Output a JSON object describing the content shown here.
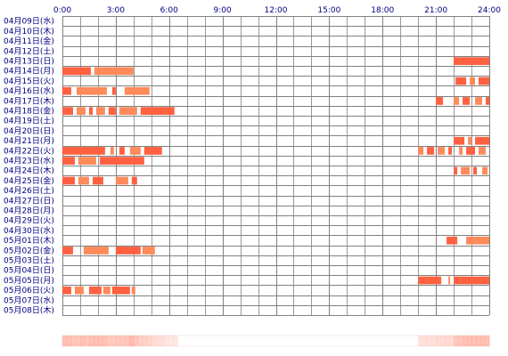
{
  "chart_data": {
    "type": "timeline",
    "x_ticks": [
      "0:00",
      "3:00",
      "6:00",
      "9:00",
      "12:00",
      "15:00",
      "18:00",
      "21:00",
      "24:00"
    ],
    "xlim": [
      0,
      24
    ],
    "grid": true,
    "bar_color": "#ff6040",
    "bar_color_light": "#ff8a5a",
    "grid_color": "#808080",
    "label_color": "#000080",
    "summary_strip_colors": [
      "#ffffff",
      "#fde0da",
      "#fbc8b8"
    ],
    "rows": [
      {
        "label": "04月09日(水)",
        "segments": []
      },
      {
        "label": "04月10日(木)",
        "segments": []
      },
      {
        "label": "04月11日(金)",
        "segments": []
      },
      {
        "label": "04月12日(土)",
        "segments": []
      },
      {
        "label": "04月13日(日)",
        "segments": [
          [
            22.0,
            24.0
          ]
        ]
      },
      {
        "label": "04月14日(月)",
        "segments": [
          [
            0.0,
            1.6
          ],
          [
            1.8,
            4.0
          ]
        ]
      },
      {
        "label": "04月15日(火)",
        "segments": [
          [
            22.1,
            22.7
          ],
          [
            22.9,
            23.2
          ],
          [
            23.4,
            24.0
          ]
        ]
      },
      {
        "label": "04月16日(水)",
        "segments": [
          [
            0.0,
            0.5
          ],
          [
            0.8,
            2.5
          ],
          [
            2.8,
            3.0
          ],
          [
            3.5,
            4.9
          ]
        ]
      },
      {
        "label": "04月17日(木)",
        "segments": [
          [
            21.0,
            21.4
          ],
          [
            22.0,
            22.3
          ],
          [
            22.5,
            22.9
          ],
          [
            23.2,
            23.6
          ],
          [
            23.8,
            24.0
          ]
        ]
      },
      {
        "label": "04月18日(金)",
        "segments": [
          [
            0.0,
            0.6
          ],
          [
            0.8,
            1.3
          ],
          [
            1.5,
            1.7
          ],
          [
            1.9,
            2.4
          ],
          [
            2.6,
            3.0
          ],
          [
            3.2,
            4.2
          ],
          [
            4.4,
            6.3
          ]
        ]
      },
      {
        "label": "04月19日(土)",
        "segments": []
      },
      {
        "label": "04月20日(日)",
        "segments": []
      },
      {
        "label": "04月21日(月)",
        "segments": [
          [
            22.0,
            22.6
          ],
          [
            22.8,
            23.0
          ],
          [
            23.2,
            24.0
          ]
        ]
      },
      {
        "label": "04月22日(火)",
        "segments": [
          [
            0.0,
            2.4
          ],
          [
            2.7,
            2.9
          ],
          [
            3.2,
            3.5
          ],
          [
            3.8,
            4.4
          ],
          [
            4.6,
            5.6
          ],
          [
            20.0,
            20.3
          ],
          [
            20.5,
            20.9
          ],
          [
            21.1,
            21.5
          ],
          [
            21.7,
            21.9
          ],
          [
            22.3,
            22.5
          ],
          [
            22.7,
            23.2
          ],
          [
            23.4,
            23.8
          ]
        ]
      },
      {
        "label": "04月23日(水)",
        "segments": [
          [
            0.0,
            0.7
          ],
          [
            0.9,
            1.9
          ],
          [
            2.1,
            4.6
          ]
        ]
      },
      {
        "label": "04月24日(木)",
        "segments": [
          [
            22.0,
            22.2
          ],
          [
            22.4,
            22.9
          ],
          [
            23.1,
            23.3
          ],
          [
            23.6,
            23.9
          ]
        ]
      },
      {
        "label": "04月25日(金)",
        "segments": [
          [
            0.0,
            0.7
          ],
          [
            0.9,
            1.5
          ],
          [
            1.7,
            2.3
          ],
          [
            3.0,
            3.7
          ],
          [
            3.9,
            4.2
          ]
        ]
      },
      {
        "label": "04月26日(土)",
        "segments": []
      },
      {
        "label": "04月27日(日)",
        "segments": []
      },
      {
        "label": "04月28日(月)",
        "segments": []
      },
      {
        "label": "04月29日(火)",
        "segments": []
      },
      {
        "label": "04月30日(水)",
        "segments": []
      },
      {
        "label": "05月01日(木)",
        "segments": [
          [
            21.6,
            22.2
          ],
          [
            22.7,
            24.0
          ]
        ]
      },
      {
        "label": "05月02日(金)",
        "segments": [
          [
            0.0,
            0.6
          ],
          [
            1.2,
            2.6
          ],
          [
            3.0,
            4.4
          ],
          [
            4.5,
            5.2
          ]
        ]
      },
      {
        "label": "05月03日(土)",
        "segments": []
      },
      {
        "label": "05月04日(日)",
        "segments": []
      },
      {
        "label": "05月05日(月)",
        "segments": [
          [
            20.0,
            21.3
          ],
          [
            21.7,
            21.8
          ],
          [
            22.0,
            24.0
          ]
        ]
      },
      {
        "label": "05月06日(火)",
        "segments": [
          [
            0.0,
            0.5
          ],
          [
            0.7,
            1.2
          ],
          [
            1.5,
            2.2
          ],
          [
            2.3,
            2.7
          ],
          [
            2.8,
            3.8
          ],
          [
            3.9,
            4.1
          ]
        ]
      },
      {
        "label": "05月07日(水)",
        "segments": []
      },
      {
        "label": "05月08日(木)",
        "segments": []
      }
    ]
  }
}
